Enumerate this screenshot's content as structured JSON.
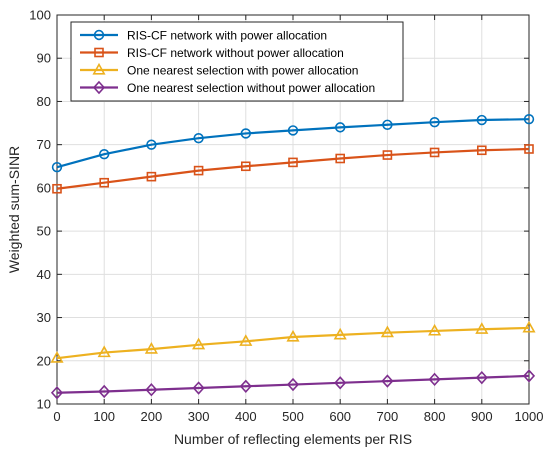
{
  "chart_data": {
    "type": "line",
    "title": "",
    "xlabel": "Number of reflecting elements per RIS",
    "ylabel": "Weighted sum-SINR",
    "xlim": [
      0,
      1000
    ],
    "ylim": [
      10,
      100
    ],
    "xticks": [
      0,
      100,
      200,
      300,
      400,
      500,
      600,
      700,
      800,
      900,
      1000
    ],
    "yticks": [
      10,
      20,
      30,
      40,
      50,
      60,
      70,
      80,
      90,
      100
    ],
    "grid": true,
    "legend_position": "top-left",
    "x": [
      0,
      100,
      200,
      300,
      400,
      500,
      600,
      700,
      800,
      900,
      1000
    ],
    "series": [
      {
        "name": "RIS-CF network with power allocation",
        "color": "#0072BD",
        "marker": "circle",
        "values": [
          64.8,
          67.8,
          70.0,
          71.5,
          72.6,
          73.3,
          74.0,
          74.6,
          75.2,
          75.7,
          75.9
        ]
      },
      {
        "name": "RIS-CF network without power allocation",
        "color": "#D95319",
        "marker": "square",
        "values": [
          59.8,
          61.2,
          62.6,
          64.0,
          65.0,
          65.9,
          66.8,
          67.6,
          68.2,
          68.7,
          69.0
        ]
      },
      {
        "name": "One nearest selection with power allocation",
        "color": "#EDB120",
        "marker": "triangle",
        "values": [
          20.6,
          21.9,
          22.7,
          23.7,
          24.5,
          25.5,
          26.0,
          26.5,
          26.9,
          27.3,
          27.6
        ]
      },
      {
        "name": "One nearest selection without power allocation",
        "color": "#7E2F8E",
        "marker": "diamond",
        "values": [
          12.6,
          12.9,
          13.3,
          13.7,
          14.1,
          14.5,
          14.9,
          15.3,
          15.7,
          16.1,
          16.5
        ]
      }
    ]
  }
}
